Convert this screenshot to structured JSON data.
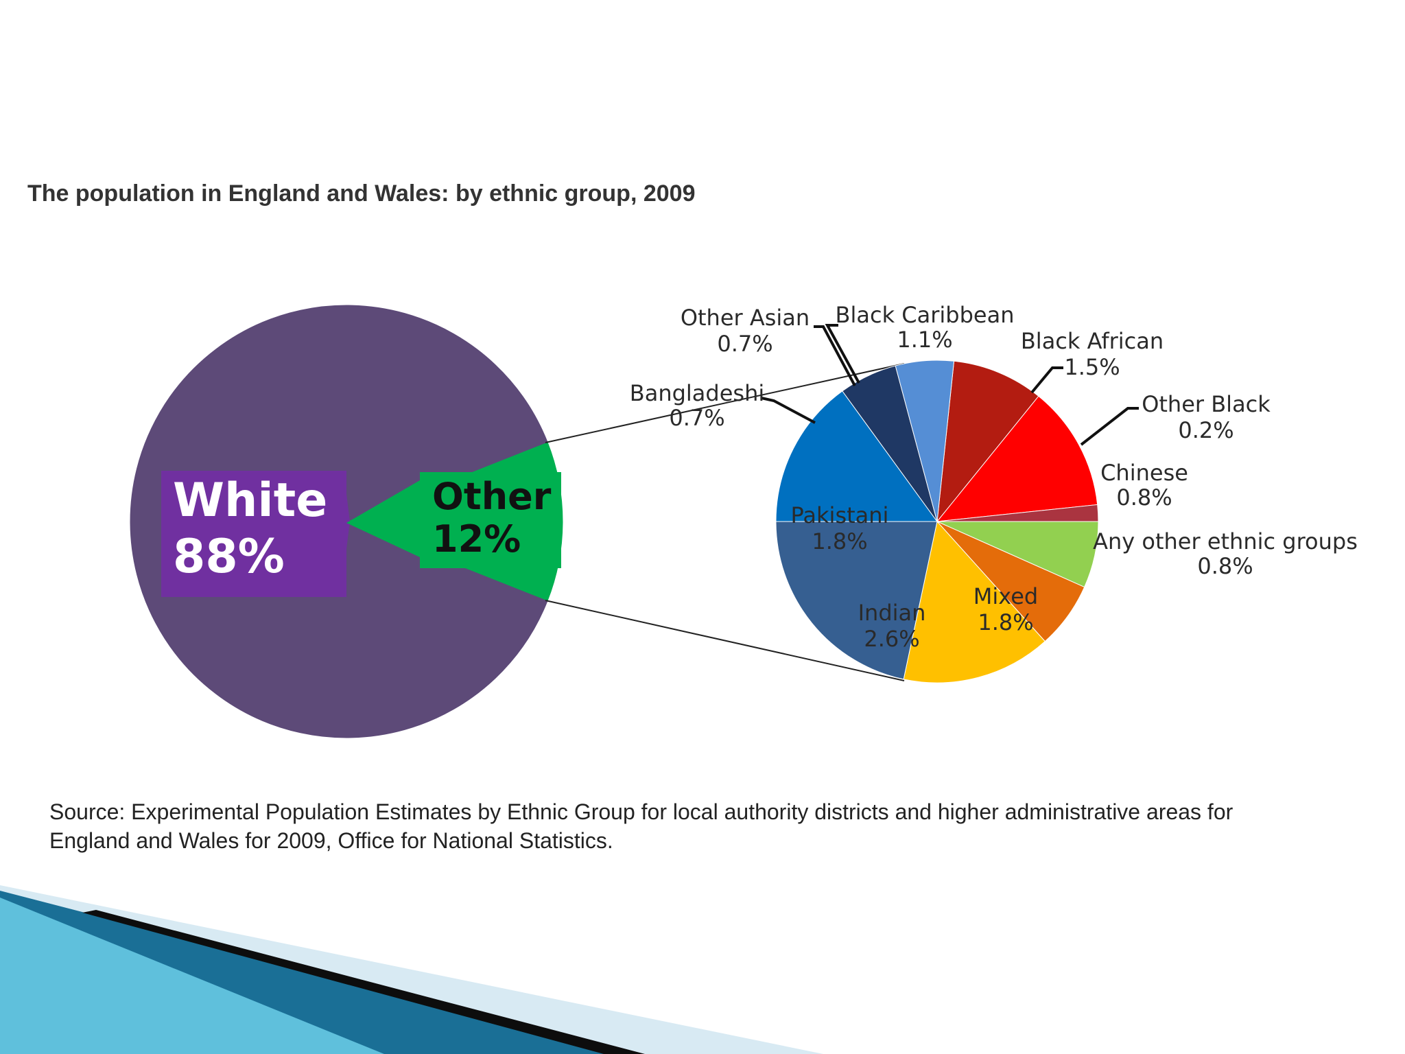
{
  "chart_data": [
    {
      "type": "pie",
      "title": "The population in England and Wales: by ethnic group, 2009",
      "slices": [
        {
          "label": "White",
          "value_label": "88%",
          "value": 88,
          "color": "#5d4a78"
        },
        {
          "label": "Other",
          "value_label": "12%",
          "value": 12,
          "color": "#00b050"
        }
      ]
    },
    {
      "type": "pie",
      "title": "",
      "slices": [
        {
          "label": "Black Caribbean",
          "value_label": "1.1%",
          "value": 1.1,
          "color": "#b31c11"
        },
        {
          "label": "Black African",
          "value_label": "1.5%",
          "value": 1.5,
          "color": "#ff0000"
        },
        {
          "label": "Other Black",
          "value_label": "0.2%",
          "value": 0.2,
          "color": "#aa3440"
        },
        {
          "label": "Chinese",
          "value_label": "0.8%",
          "value": 0.8,
          "color": "#92d050"
        },
        {
          "label": "Any other ethnic groups",
          "value_label": "0.8%",
          "value": 0.8,
          "color": "#e46c0a"
        },
        {
          "label": "Mixed",
          "value_label": "1.8%",
          "value": 1.8,
          "color": "#ffc000"
        },
        {
          "label": "Indian",
          "value_label": "2.6%",
          "value": 2.6,
          "color": "#365f91"
        },
        {
          "label": "Pakistani",
          "value_label": "1.8%",
          "value": 1.8,
          "color": "#0070c0"
        },
        {
          "label": "Bangladeshi",
          "value_label": "0.7%",
          "value": 0.7,
          "color": "#1f3864"
        },
        {
          "label": "Other Asian",
          "value_label": "0.7%",
          "value": 0.7,
          "color": "#558ed5"
        }
      ]
    }
  ],
  "source": {
    "line1": "Source: Experimental Population Estimates by Ethnic Group for local authority districts and higher administrative areas for",
    "line2": "England and Wales for 2009, Office for National Statistics."
  },
  "decoration_colors": {
    "teal": "#2a8bb0",
    "dark": "#0d0d0d",
    "light": "#d8eaf3"
  }
}
